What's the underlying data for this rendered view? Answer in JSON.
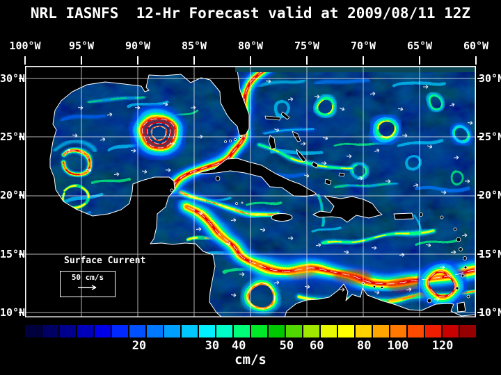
{
  "title": "NRL IASNFS  12-Hr Forecast valid at 2009/08/11 12Z",
  "axes": {
    "lon": [
      "100°W",
      "95°W",
      "90°W",
      "85°W",
      "80°W",
      "75°W",
      "70°W",
      "65°W",
      "60°W"
    ],
    "lat_left": [
      "30°N",
      "25°N",
      "20°N",
      "15°N",
      "10°N"
    ],
    "lat_right": [
      "30°N",
      "25°N",
      "20°N",
      "15°N",
      "10°N"
    ]
  },
  "map": {
    "overlay_label": "Surface Current",
    "scale_label": "50 cm/s"
  },
  "colorbar": {
    "unit": "cm/s",
    "tick_labels": [
      "20",
      "30",
      "40",
      "50",
      "60",
      "80",
      "100",
      "120"
    ],
    "tick_positions_pct": [
      25.3,
      41.5,
      47.4,
      58.0,
      64.7,
      75.2,
      82.7,
      92.6
    ],
    "colors": [
      "#00003c",
      "#000064",
      "#00008f",
      "#0000bb",
      "#0000e8",
      "#0028ff",
      "#0050ff",
      "#0078ff",
      "#00a0ff",
      "#00c8ff",
      "#00f0ff",
      "#00ffc8",
      "#00ff78",
      "#00e828",
      "#00c800",
      "#50d800",
      "#a0e800",
      "#e8f800",
      "#ffff00",
      "#ffd200",
      "#ffa500",
      "#ff7800",
      "#ff4b00",
      "#f01e00",
      "#c80000",
      "#960000"
    ]
  },
  "colors": {
    "background": "#000000",
    "ocean_deep": "#000226",
    "land": "#000000",
    "coastline": "#ffffff",
    "grid": "#ffffff",
    "boundary_strip": "#0c4654",
    "text": "#ffffff"
  }
}
